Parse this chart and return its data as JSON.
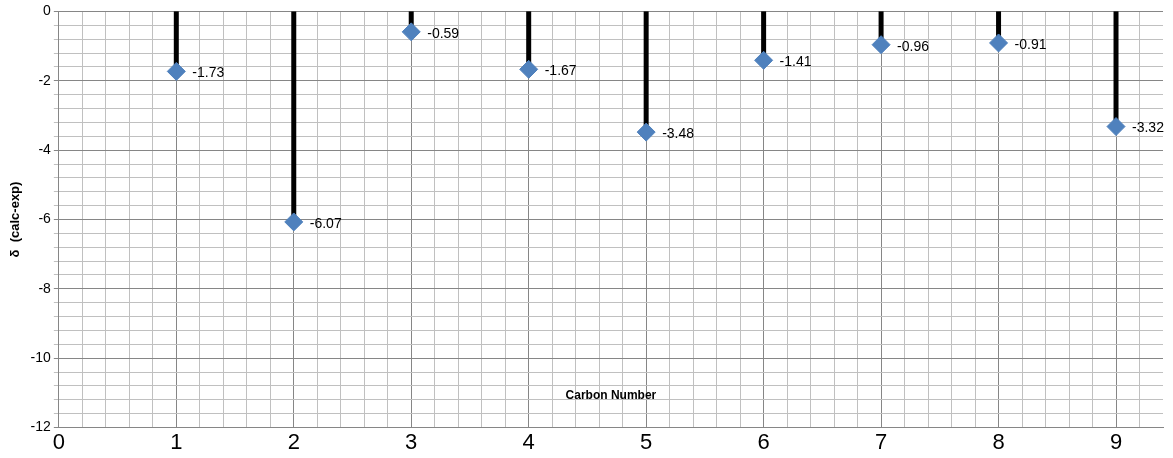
{
  "chart_data": {
    "type": "lollipop",
    "xlabel": "Carbon Number",
    "ylabel": "δ  (calc-exp)",
    "x": [
      1,
      2,
      3,
      4,
      5,
      6,
      7,
      8,
      9
    ],
    "series": [
      {
        "color": "#4f81bd",
        "values": [
          -1.73,
          -6.07,
          -0.59,
          -1.67,
          -3.48,
          -1.41,
          -0.96,
          -0.91,
          -3.32
        ]
      }
    ],
    "xlim": [
      0,
      9.4
    ],
    "ylim": [
      -12,
      0
    ],
    "xticks": [
      0,
      {
        "value": 0.2,
        "label": null
      },
      {
        "value": 0.4,
        "label": null
      },
      {
        "value": 0.6,
        "label": null
      },
      {
        "value": 0.8,
        "label": null
      },
      1,
      {
        "value": 1.2,
        "label": null
      },
      {
        "value": 1.4,
        "label": null
      },
      {
        "value": 1.6,
        "label": null
      },
      {
        "value": 1.8,
        "label": null
      },
      2,
      {
        "value": 2.2,
        "label": null
      },
      {
        "value": 2.4,
        "label": null
      },
      {
        "value": 2.6,
        "label": null
      },
      {
        "value": 2.8,
        "label": null
      },
      3,
      {
        "value": 3.2,
        "label": null
      },
      {
        "value": 3.4,
        "label": null
      },
      {
        "value": 3.6,
        "label": null
      },
      {
        "value": 3.8,
        "label": null
      },
      4,
      {
        "value": 4.2,
        "label": null
      },
      {
        "value": 4.4,
        "label": null
      },
      {
        "value": 4.6,
        "label": null
      },
      {
        "value": 4.8,
        "label": null
      },
      5,
      {
        "value": 5.2,
        "label": null
      },
      {
        "value": 5.4,
        "label": null
      },
      {
        "value": 5.6,
        "label": null
      },
      {
        "value": 5.8,
        "label": null
      },
      6,
      {
        "value": 6.2,
        "label": null
      },
      {
        "value": 6.4,
        "label": null
      },
      {
        "value": 6.6,
        "label": null
      },
      {
        "value": 6.8,
        "label": null
      },
      7,
      {
        "value": 7.2,
        "label": null
      },
      {
        "value": 7.4,
        "label": null
      },
      {
        "value": 7.6,
        "label": null
      },
      {
        "value": 7.8,
        "label": null
      },
      8,
      {
        "value": 8.2,
        "label": null
      },
      {
        "value": 8.4,
        "label": null
      },
      {
        "value": 8.6,
        "label": null
      },
      {
        "value": 8.8,
        "label": null
      },
      9,
      {
        "value": 9.2,
        "label": null
      }
    ],
    "yticks": [
      -12,
      {
        "value": -11.6,
        "label": null
      },
      {
        "value": -11.2,
        "label": null
      },
      {
        "value": -10.8,
        "label": null
      },
      {
        "value": -10.4,
        "label": null
      },
      -10,
      {
        "value": -9.6,
        "label": null
      },
      {
        "value": -9.2,
        "label": null
      },
      {
        "value": -8.8,
        "label": null
      },
      {
        "value": -8.4,
        "label": null
      },
      -8,
      {
        "value": -7.6,
        "label": null
      },
      {
        "value": -7.2,
        "label": null
      },
      {
        "value": -6.8,
        "label": null
      },
      {
        "value": -6.4,
        "label": null
      },
      -6,
      {
        "value": -5.6,
        "label": null
      },
      {
        "value": -5.2,
        "label": null
      },
      {
        "value": -4.8,
        "label": null
      },
      {
        "value": -4.4,
        "label": null
      },
      -4,
      {
        "value": -3.6,
        "label": null
      },
      {
        "value": -3.2,
        "label": null
      },
      {
        "value": -2.8,
        "label": null
      },
      {
        "value": -2.4,
        "label": null
      },
      -2,
      {
        "value": -1.6,
        "label": null
      },
      {
        "value": -1.2,
        "label": null
      },
      {
        "value": -0.8,
        "label": null
      },
      {
        "value": -0.4,
        "label": null
      },
      0
    ],
    "grid": true,
    "marker": "diamond",
    "data_labels": true
  }
}
